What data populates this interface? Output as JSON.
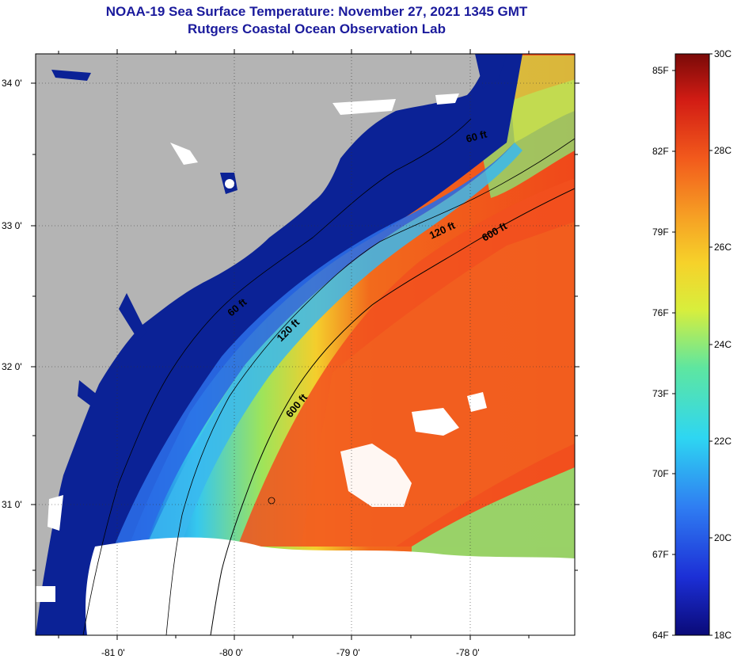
{
  "title_line1": "NOAA-19 Sea Surface Temperature:  November 27, 2021 1345 GMT",
  "title_line2": "Rutgers Coastal Ocean Observation Lab",
  "lat_labels": [
    "34 0'",
    "33 0'",
    "32 0'",
    "31 0'"
  ],
  "lon_labels": [
    "-81 0'",
    "-80 0'",
    "-79 0'",
    "-78 0'"
  ],
  "contour_labels": [
    "60 ft",
    "120 ft",
    "600 ft",
    "60 ft",
    "120 ft",
    "600 ft"
  ],
  "colorbar": {
    "fahrenheit_labels": [
      "85F",
      "82F",
      "79F",
      "76F",
      "73F",
      "70F",
      "67F",
      "64F"
    ],
    "celsius_labels": [
      "30C",
      "28C",
      "26C",
      "24C",
      "22C",
      "20C",
      "18C"
    ]
  },
  "colors": {
    "land": "#b4b4b4",
    "clouds": "#ffffff",
    "title": "#1a1a9c"
  }
}
